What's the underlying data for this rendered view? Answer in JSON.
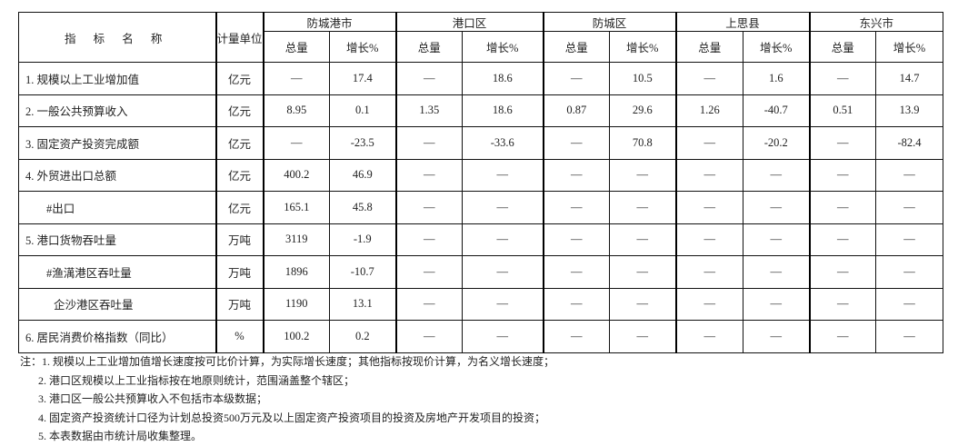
{
  "header": {
    "indicator": "指 标 名 称",
    "unit": "计量单位",
    "regions": [
      "防城港市",
      "港口区",
      "防城区",
      "上思县",
      "东兴市"
    ],
    "total": "总量",
    "growth": "增长%"
  },
  "rows": [
    {
      "name": "1. 规模以上工业增加值",
      "indent": 0,
      "unit": "亿元",
      "values": [
        "—",
        "17.4",
        "—",
        "18.6",
        "—",
        "10.5",
        "—",
        "1.6",
        "—",
        "14.7"
      ]
    },
    {
      "name": "2. 一般公共预算收入",
      "indent": 0,
      "unit": "亿元",
      "values": [
        "8.95",
        "0.1",
        "1.35",
        "18.6",
        "0.87",
        "29.6",
        "1.26",
        "-40.7",
        "0.51",
        "13.9"
      ]
    },
    {
      "name": "3. 固定资产投资完成额",
      "indent": 0,
      "unit": "亿元",
      "values": [
        "—",
        "-23.5",
        "—",
        "-33.6",
        "—",
        "70.8",
        "—",
        "-20.2",
        "—",
        "-82.4"
      ]
    },
    {
      "name": "4. 外贸进出口总额",
      "indent": 0,
      "unit": "亿元",
      "values": [
        "400.2",
        "46.9",
        "—",
        "—",
        "—",
        "—",
        "—",
        "—",
        "—",
        "—"
      ]
    },
    {
      "name": "#出口",
      "indent": 1,
      "unit": "亿元",
      "values": [
        "165.1",
        "45.8",
        "—",
        "—",
        "—",
        "—",
        "—",
        "—",
        "—",
        "—"
      ]
    },
    {
      "name": "5. 港口货物吞吐量",
      "indent": 0,
      "unit": "万吨",
      "values": [
        "3119",
        "-1.9",
        "—",
        "—",
        "—",
        "—",
        "—",
        "—",
        "—",
        "—"
      ]
    },
    {
      "name": "#渔澫港区吞吐量",
      "indent": 1,
      "unit": "万吨",
      "values": [
        "1896",
        "-10.7",
        "—",
        "—",
        "—",
        "—",
        "—",
        "—",
        "—",
        "—"
      ]
    },
    {
      "name": "企沙港区吞吐量",
      "indent": 2,
      "unit": "万吨",
      "values": [
        "1190",
        "13.1",
        "—",
        "—",
        "—",
        "—",
        "—",
        "—",
        "—",
        "—"
      ]
    },
    {
      "name": "6. 居民消费价格指数（同比）",
      "indent": 0,
      "unit": "%",
      "values": [
        "100.2",
        "0.2",
        "—",
        "—",
        "—",
        "—",
        "—",
        "—",
        "—",
        "—"
      ]
    }
  ],
  "notes": [
    "注：1. 规模以上工业增加值增长速度按可比价计算，为实际增长速度；其他指标按现价计算，为名义增长速度；",
    "2. 港口区规模以上工业指标按在地原则统计，范围涵盖整个辖区；",
    "3. 港口区一般公共预算收入不包括市本级数据；",
    "4. 固定资产投资统计口径为计划总投资500万元及以上固定资产投资项目的投资及房地产开发项目的投资；",
    "5. 本表数据由市统计局收集整理。"
  ]
}
